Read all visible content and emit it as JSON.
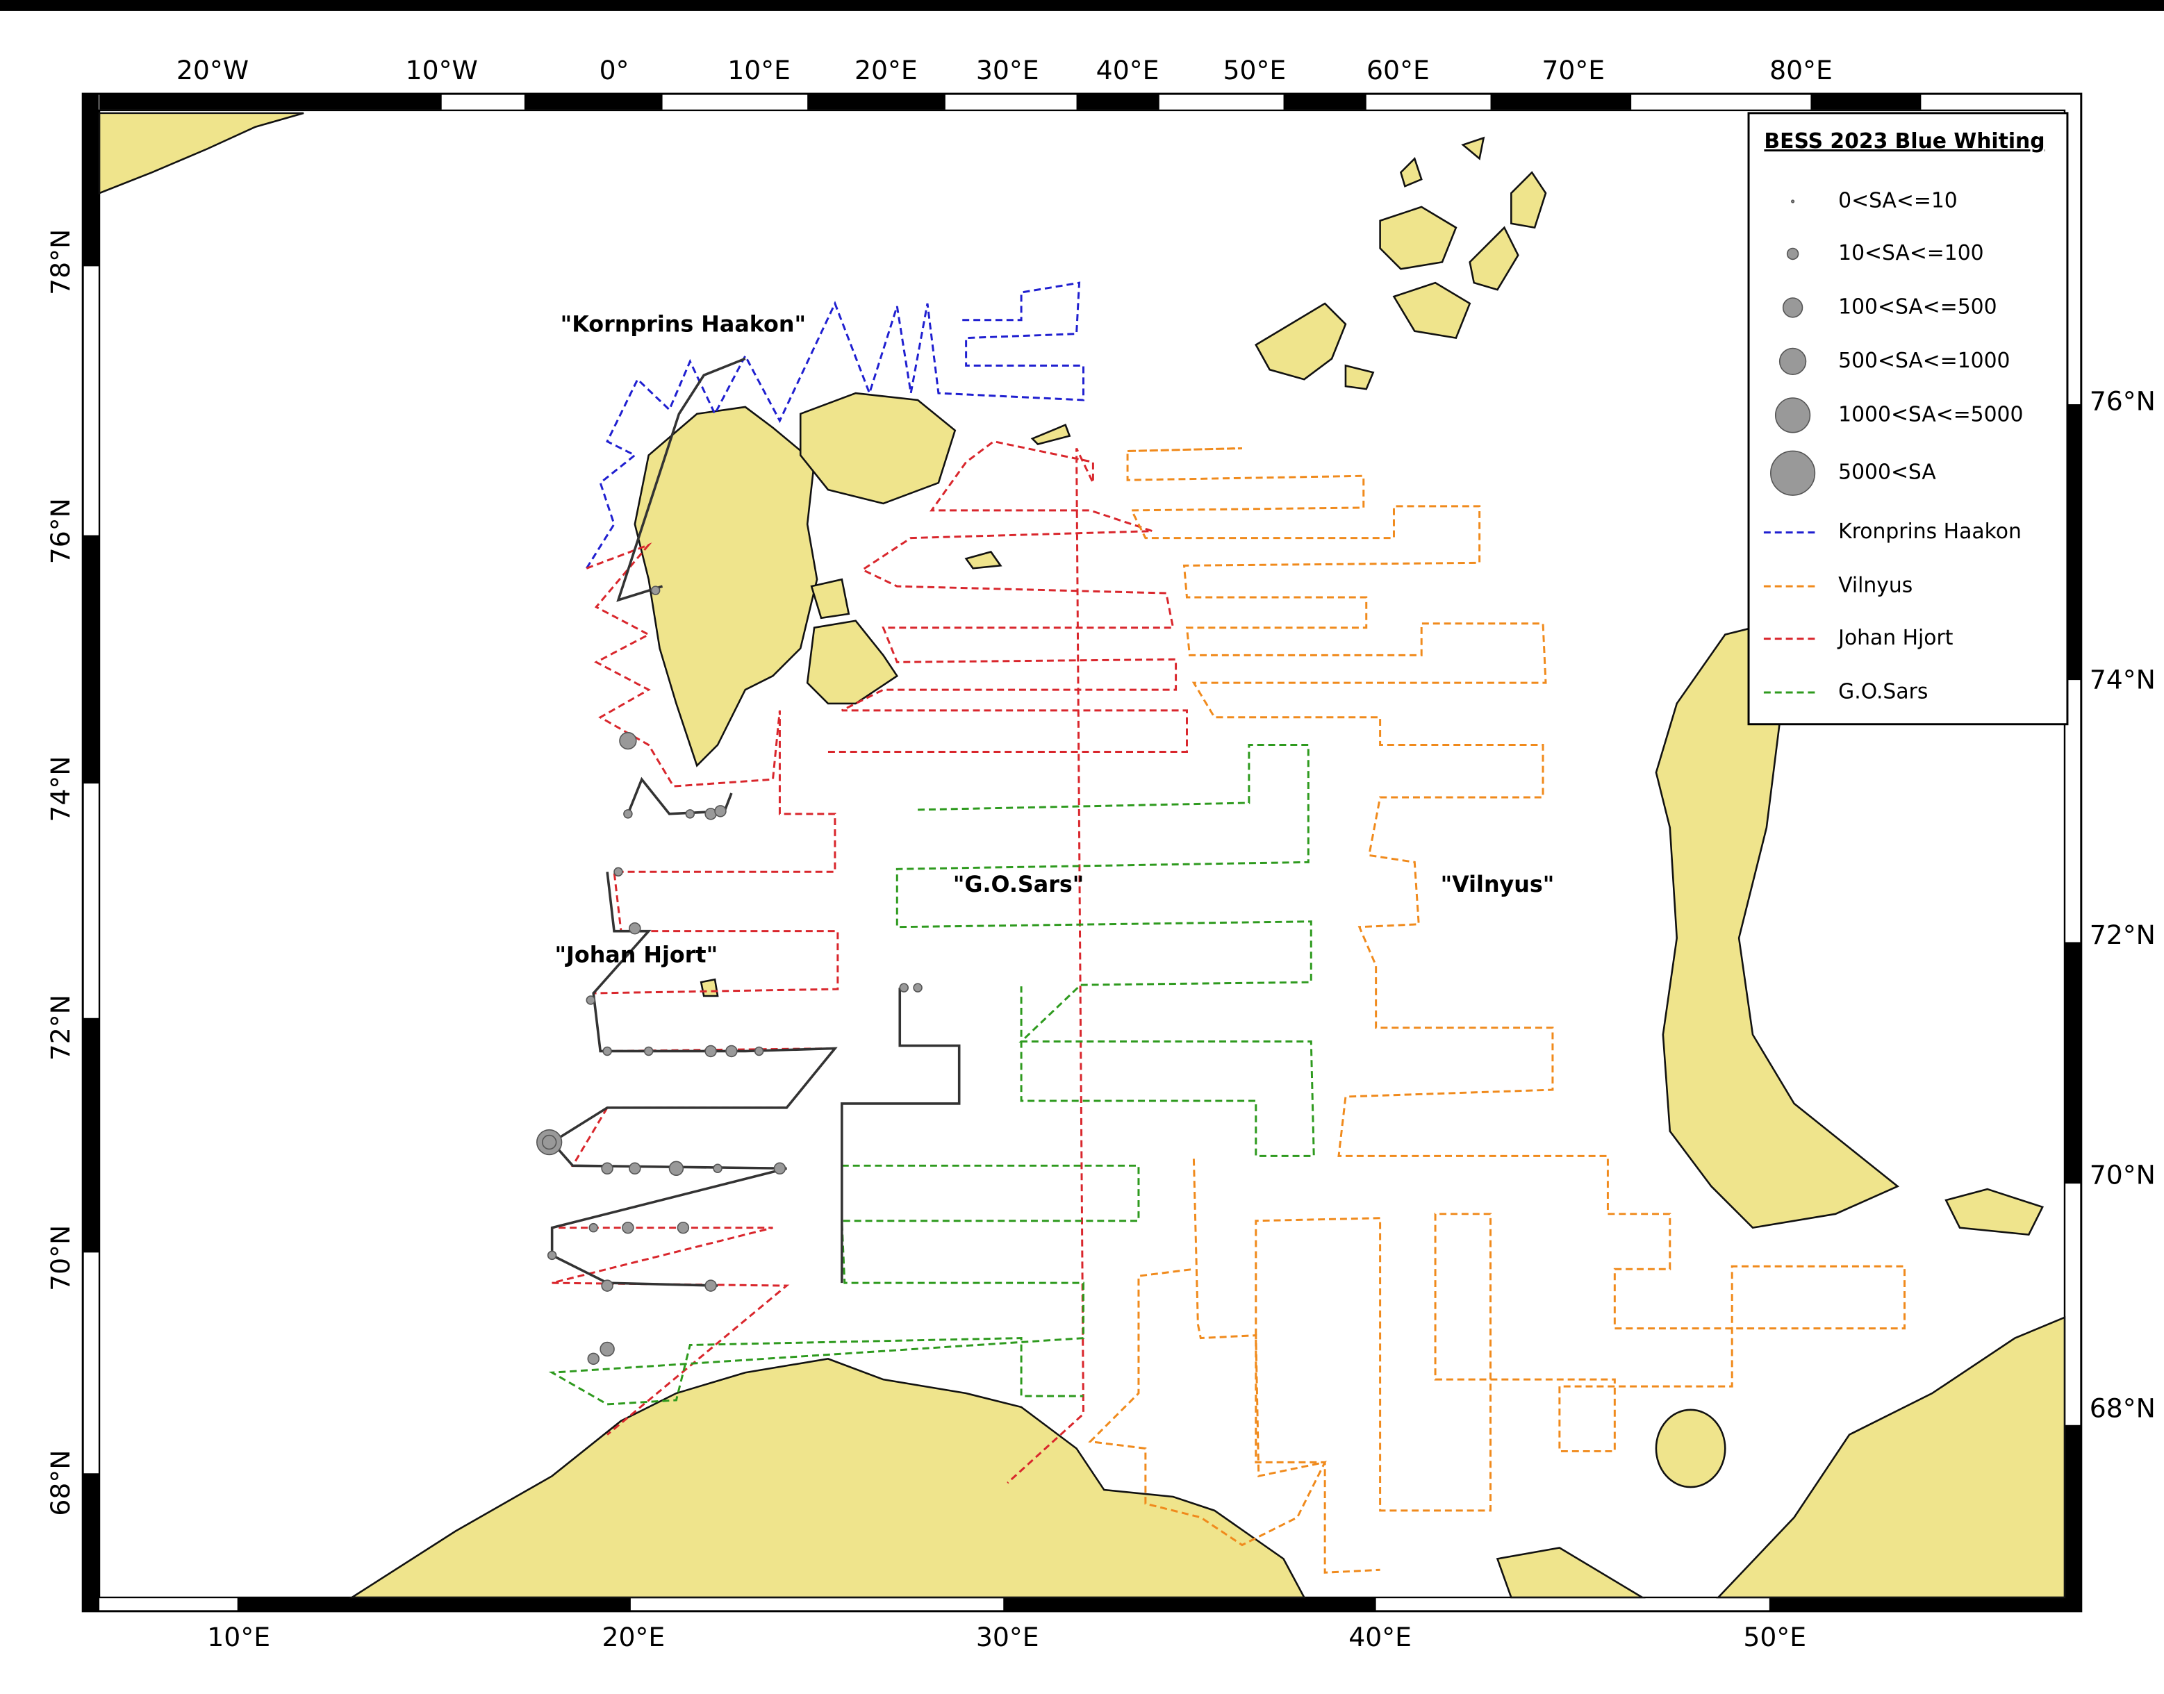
{
  "axes": {
    "top": [
      "20°W",
      "10°W",
      "0°",
      "10°E",
      "20°E",
      "30°E",
      "40°E",
      "50°E",
      "60°E",
      "70°E",
      "80°E"
    ],
    "bottom": [
      "10°E",
      "20°E",
      "30°E",
      "40°E",
      "50°E"
    ],
    "left": [
      "78°N",
      "76°N",
      "74°N",
      "72°N",
      "70°N",
      "68°N"
    ],
    "right": [
      "76°N",
      "74°N",
      "72°N",
      "70°N",
      "68°N"
    ]
  },
  "legend": {
    "title": "BESS 2023 Blue Whiting",
    "entries": [
      "0<SA<=10",
      "10<SA<=100",
      "100<SA<=500",
      "500<SA<=1000",
      "1000<SA<=5000",
      "5000<SA",
      "Kronprins Haakon",
      "Vilnyus",
      "Johan Hjort",
      "G.O.Sars"
    ]
  },
  "labels": [
    "\"Kornprins Haakon\"",
    "\"G.O.Sars\"",
    "\"Vilnyus\"",
    "\"Johan Hjort\""
  ]
}
